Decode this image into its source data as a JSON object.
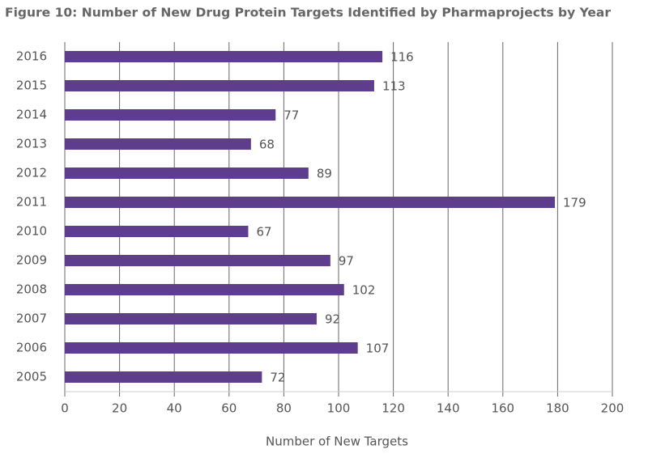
{
  "chart_data": {
    "type": "hbar",
    "title": "Figure 10: Number of New Drug Protein Targets Identified by Pharmaprojects by Year",
    "x_label": "Number of New Targets",
    "categories": [
      "2016",
      "2015",
      "2014",
      "2013",
      "2012",
      "2011",
      "2010",
      "2009",
      "2008",
      "2007",
      "2006",
      "2005"
    ],
    "values": [
      116,
      113,
      77,
      68,
      89,
      179,
      67,
      97,
      102,
      92,
      107,
      72
    ],
    "color": "#5e3d8f",
    "xlim": [
      0,
      200
    ],
    "xticks": [
      0,
      20,
      40,
      60,
      80,
      100,
      120,
      140,
      160,
      180,
      200
    ],
    "grid": true
  }
}
